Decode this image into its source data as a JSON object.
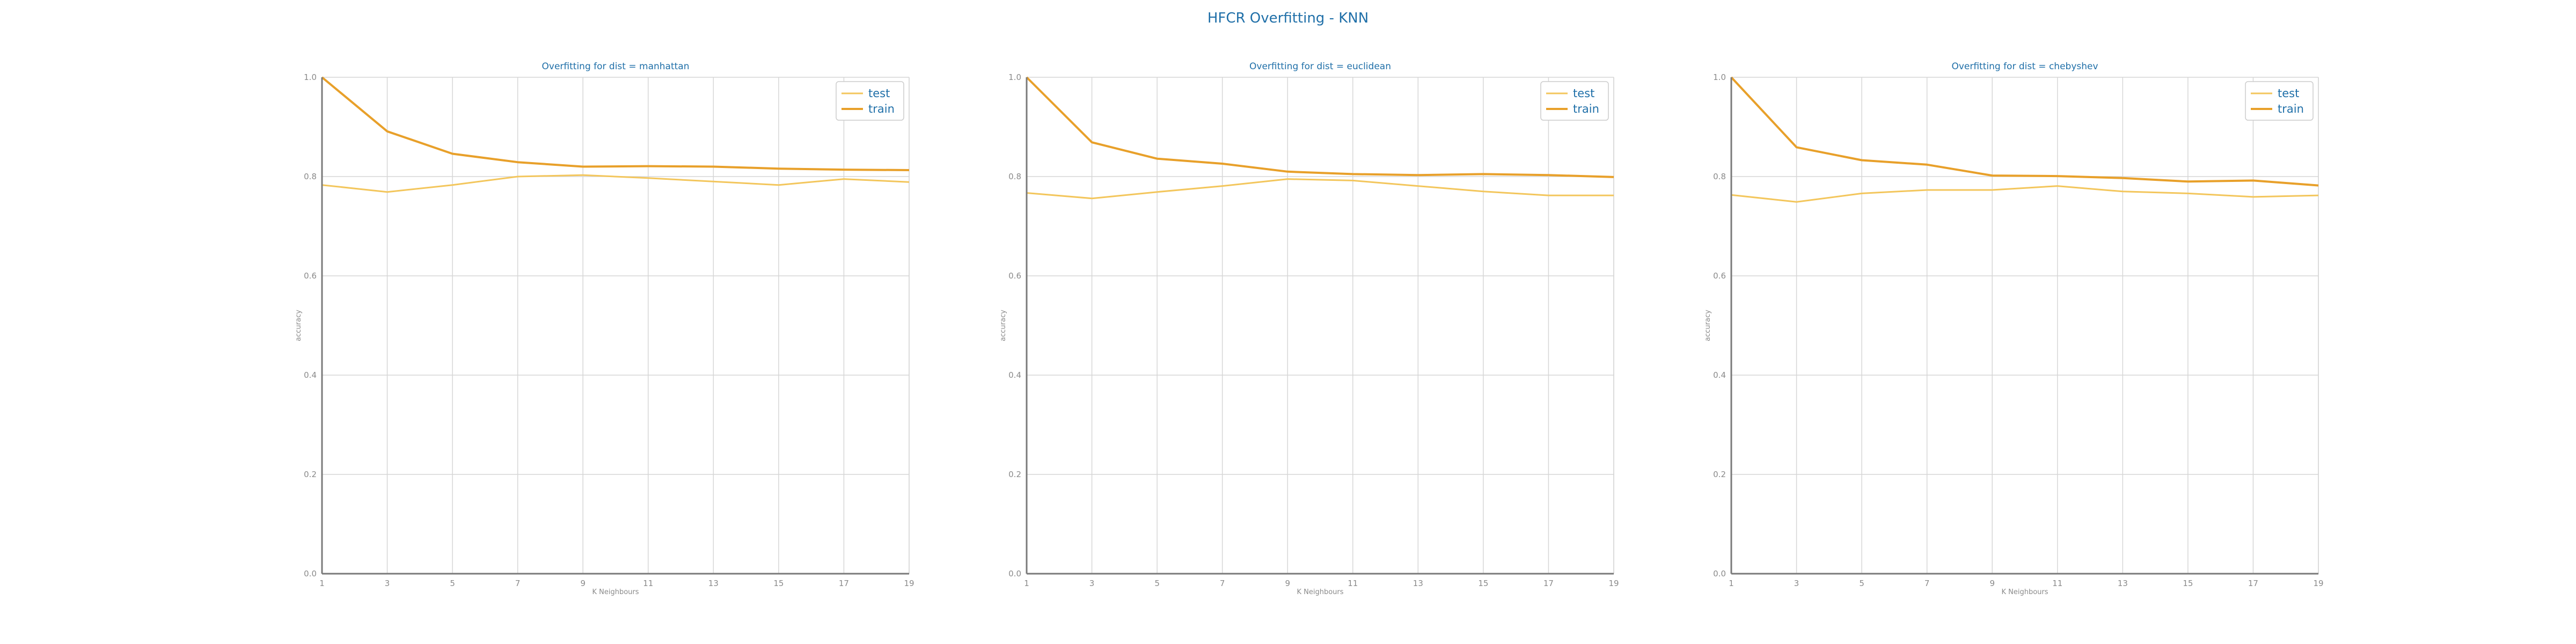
{
  "figure": {
    "title": "HFCR Overfitting - KNN"
  },
  "colors": {
    "test": "#f3c65c",
    "train": "#e8a02a",
    "title": "#1f6fa8",
    "grid": "#d6d6d6",
    "axis": "#7a7a7a"
  },
  "chart_data": [
    {
      "type": "line",
      "title": "Overfitting for dist = manhattan",
      "xlabel": "K Neighbours",
      "ylabel": "accuracy",
      "x": [
        1,
        3,
        5,
        7,
        9,
        11,
        13,
        15,
        17,
        19
      ],
      "xticks": [
        "1",
        "3",
        "5",
        "7",
        "9",
        "11",
        "13",
        "15",
        "17",
        "19"
      ],
      "yticks": [
        "0.0",
        "0.2",
        "0.4",
        "0.6",
        "0.8",
        "1.0"
      ],
      "ylim": [
        0,
        1
      ],
      "grid": true,
      "legend": "top-right",
      "series": [
        {
          "name": "test",
          "values": [
            0.783,
            0.769,
            0.783,
            0.8,
            0.803,
            0.797,
            0.79,
            0.783,
            0.795,
            0.789
          ]
        },
        {
          "name": "train",
          "values": [
            1.0,
            0.891,
            0.846,
            0.829,
            0.82,
            0.821,
            0.82,
            0.816,
            0.814,
            0.813
          ]
        }
      ]
    },
    {
      "type": "line",
      "title": "Overfitting for dist = euclidean",
      "xlabel": "K Neighbours",
      "ylabel": "accuracy",
      "x": [
        1,
        3,
        5,
        7,
        9,
        11,
        13,
        15,
        17,
        19
      ],
      "xticks": [
        "1",
        "3",
        "5",
        "7",
        "9",
        "11",
        "13",
        "15",
        "17",
        "19"
      ],
      "yticks": [
        "0.0",
        "0.2",
        "0.4",
        "0.6",
        "0.8",
        "1.0"
      ],
      "ylim": [
        0,
        1
      ],
      "grid": true,
      "legend": "top-right",
      "series": [
        {
          "name": "test",
          "values": [
            0.767,
            0.756,
            0.769,
            0.781,
            0.795,
            0.792,
            0.781,
            0.77,
            0.762,
            0.762
          ]
        },
        {
          "name": "train",
          "values": [
            1.0,
            0.869,
            0.836,
            0.826,
            0.81,
            0.805,
            0.803,
            0.805,
            0.803,
            0.799
          ]
        }
      ]
    },
    {
      "type": "line",
      "title": "Overfitting for dist = chebyshev",
      "xlabel": "K Neighbours",
      "ylabel": "accuracy",
      "x": [
        1,
        3,
        5,
        7,
        9,
        11,
        13,
        15,
        17,
        19
      ],
      "xticks": [
        "1",
        "3",
        "5",
        "7",
        "9",
        "11",
        "13",
        "15",
        "17",
        "19"
      ],
      "yticks": [
        "0.0",
        "0.2",
        "0.4",
        "0.6",
        "0.8",
        "1.0"
      ],
      "ylim": [
        0,
        1
      ],
      "grid": true,
      "legend": "top-right",
      "series": [
        {
          "name": "test",
          "values": [
            0.763,
            0.749,
            0.766,
            0.773,
            0.773,
            0.781,
            0.77,
            0.766,
            0.759,
            0.762
          ]
        },
        {
          "name": "train",
          "values": [
            1.0,
            0.859,
            0.833,
            0.824,
            0.802,
            0.801,
            0.797,
            0.79,
            0.792,
            0.782
          ]
        }
      ]
    }
  ]
}
